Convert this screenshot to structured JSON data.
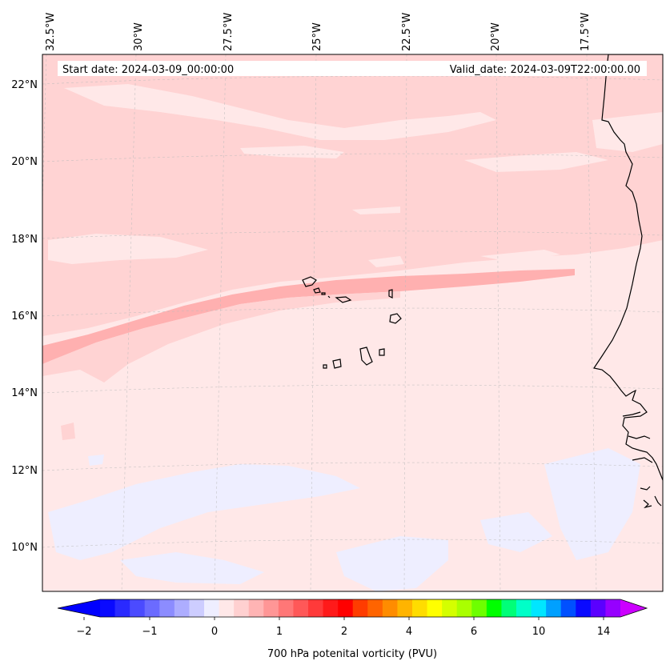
{
  "map": {
    "title_left": "Start date: 2024-03-09_00:00:00",
    "title_right": "Valid_date: 2024-03-09T22:00:00.00",
    "lon_labels": [
      "32.5°W",
      "30°W",
      "27.5°W",
      "25°W",
      "22.5°W",
      "20°W",
      "17.5°W"
    ],
    "lat_labels": [
      "22°N",
      "20°N",
      "18°N",
      "16°N",
      "14°N",
      "12°N",
      "10°N"
    ],
    "region": "Cabo Verde islands and West African coast (Senegal)"
  },
  "colorbar": {
    "label": "700 hPa potenital vorticity (PVU)",
    "tick_labels": [
      "−2",
      "−1",
      "0",
      "1",
      "2",
      "4",
      "6",
      "10",
      "14"
    ],
    "colors": [
      "#0a0aff",
      "#2a2aff",
      "#4b4bff",
      "#6b6bff",
      "#8c8cff",
      "#adadff",
      "#cdcdff",
      "#eeeeff",
      "#ffe8e8",
      "#ffd0d0",
      "#ffb4b4",
      "#ff9696",
      "#ff7777",
      "#ff5858",
      "#ff3a3a",
      "#ff1a1a",
      "#ff0000",
      "#ff3c00",
      "#ff6400",
      "#ff8c00",
      "#ffb400",
      "#ffdc00",
      "#ffff00",
      "#d4ff00",
      "#aaff00",
      "#6eff00",
      "#00ff00",
      "#00ff78",
      "#00ffc8",
      "#00e6ff",
      "#00a0ff",
      "#0050ff",
      "#0a0aff",
      "#5a00ff",
      "#9600ff"
    ],
    "under_color": "#0000ff",
    "over_color": "#cc00ff"
  }
}
